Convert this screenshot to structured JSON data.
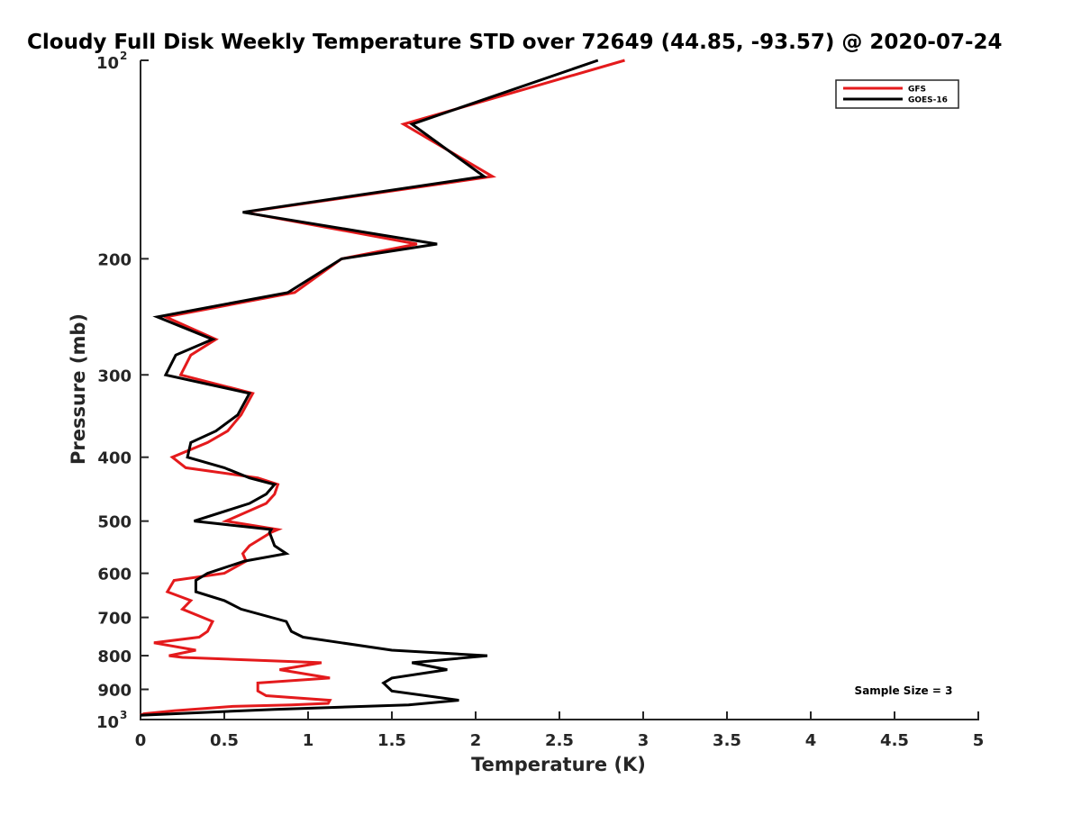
{
  "chart_data": {
    "type": "line",
    "title": "Cloudy Full Disk Weekly Temperature STD over 72649 (44.85, -93.57) @ 2020-07-24",
    "xlabel": "Temperature (K)",
    "ylabel": "Pressure (mb)",
    "xlim": [
      0,
      5
    ],
    "ylim": [
      100,
      1000
    ],
    "yscale": "log",
    "y_reversed": true,
    "grid": false,
    "legend_position": "top-right",
    "x_ticks": [
      {
        "value": 0,
        "label": "0"
      },
      {
        "value": 0.5,
        "label": "0.5"
      },
      {
        "value": 1,
        "label": "1"
      },
      {
        "value": 1.5,
        "label": "1.5"
      },
      {
        "value": 2,
        "label": "2"
      },
      {
        "value": 2.5,
        "label": "2.5"
      },
      {
        "value": 3,
        "label": "3"
      },
      {
        "value": 3.5,
        "label": "3.5"
      },
      {
        "value": 4,
        "label": "4"
      },
      {
        "value": 4.5,
        "label": "4.5"
      },
      {
        "value": 5,
        "label": "5"
      }
    ],
    "y_ticks": [
      {
        "value": 100,
        "base": "10",
        "exp": "2"
      },
      {
        "value": 200,
        "label": "200"
      },
      {
        "value": 300,
        "label": "300"
      },
      {
        "value": 400,
        "label": "400"
      },
      {
        "value": 500,
        "label": "500"
      },
      {
        "value": 600,
        "label": "600"
      },
      {
        "value": 700,
        "label": "700"
      },
      {
        "value": 800,
        "label": "800"
      },
      {
        "value": 900,
        "label": "900"
      },
      {
        "value": 1000,
        "base": "10",
        "exp": "3"
      }
    ],
    "series": [
      {
        "name": "GFS",
        "color": "#e41a1c",
        "points": [
          [
            2.89,
            100
          ],
          [
            1.57,
            125
          ],
          [
            2.1,
            150
          ],
          [
            0.62,
            170
          ],
          [
            1.65,
            190
          ],
          [
            1.2,
            200
          ],
          [
            0.92,
            225
          ],
          [
            0.15,
            245
          ],
          [
            0.45,
            265
          ],
          [
            0.3,
            280
          ],
          [
            0.24,
            300
          ],
          [
            0.67,
            320
          ],
          [
            0.6,
            345
          ],
          [
            0.52,
            365
          ],
          [
            0.4,
            380
          ],
          [
            0.19,
            400
          ],
          [
            0.27,
            415
          ],
          [
            0.7,
            430
          ],
          [
            0.82,
            440
          ],
          [
            0.8,
            455
          ],
          [
            0.75,
            470
          ],
          [
            0.51,
            500
          ],
          [
            0.82,
            515
          ],
          [
            0.78,
            520
          ],
          [
            0.65,
            545
          ],
          [
            0.61,
            560
          ],
          [
            0.63,
            575
          ],
          [
            0.5,
            600
          ],
          [
            0.2,
            615
          ],
          [
            0.16,
            640
          ],
          [
            0.3,
            660
          ],
          [
            0.25,
            680
          ],
          [
            0.43,
            710
          ],
          [
            0.4,
            735
          ],
          [
            0.35,
            750
          ],
          [
            0.08,
            765
          ],
          [
            0.33,
            785
          ],
          [
            0.17,
            800
          ],
          [
            0.25,
            805
          ],
          [
            1.08,
            820
          ],
          [
            0.83,
            840
          ],
          [
            1.13,
            865
          ],
          [
            0.7,
            880
          ],
          [
            0.7,
            905
          ],
          [
            0.75,
            920
          ],
          [
            1.13,
            935
          ],
          [
            1.12,
            945
          ],
          [
            0.9,
            950
          ],
          [
            0.55,
            955
          ],
          [
            0.2,
            970
          ],
          [
            0.02,
            980
          ],
          [
            0.0,
            985
          ]
        ]
      },
      {
        "name": "GOES-16",
        "color": "#000000",
        "points": [
          [
            2.73,
            100
          ],
          [
            1.62,
            125
          ],
          [
            2.05,
            150
          ],
          [
            0.61,
            170
          ],
          [
            1.77,
            190
          ],
          [
            1.2,
            200
          ],
          [
            0.88,
            225
          ],
          [
            0.1,
            245
          ],
          [
            0.43,
            265
          ],
          [
            0.21,
            280
          ],
          [
            0.15,
            300
          ],
          [
            0.65,
            320
          ],
          [
            0.58,
            345
          ],
          [
            0.45,
            365
          ],
          [
            0.3,
            380
          ],
          [
            0.28,
            400
          ],
          [
            0.5,
            415
          ],
          [
            0.65,
            430
          ],
          [
            0.8,
            440
          ],
          [
            0.75,
            455
          ],
          [
            0.65,
            470
          ],
          [
            0.32,
            500
          ],
          [
            0.78,
            515
          ],
          [
            0.77,
            520
          ],
          [
            0.8,
            545
          ],
          [
            0.87,
            560
          ],
          [
            0.62,
            575
          ],
          [
            0.4,
            600
          ],
          [
            0.33,
            615
          ],
          [
            0.33,
            640
          ],
          [
            0.5,
            660
          ],
          [
            0.6,
            680
          ],
          [
            0.87,
            710
          ],
          [
            0.9,
            735
          ],
          [
            0.97,
            750
          ],
          [
            1.2,
            765
          ],
          [
            1.5,
            785
          ],
          [
            2.07,
            800
          ],
          [
            1.62,
            820
          ],
          [
            1.83,
            840
          ],
          [
            1.5,
            865
          ],
          [
            1.45,
            880
          ],
          [
            1.5,
            905
          ],
          [
            1.9,
            935
          ],
          [
            1.6,
            950
          ],
          [
            0.8,
            965
          ],
          [
            0.0,
            985
          ]
        ]
      }
    ],
    "legend": [
      {
        "label": "GFS",
        "color": "#e41a1c"
      },
      {
        "label": "GOES-16",
        "color": "#000000"
      }
    ],
    "annotations": [
      {
        "text": "Sample Size = 3"
      }
    ]
  }
}
